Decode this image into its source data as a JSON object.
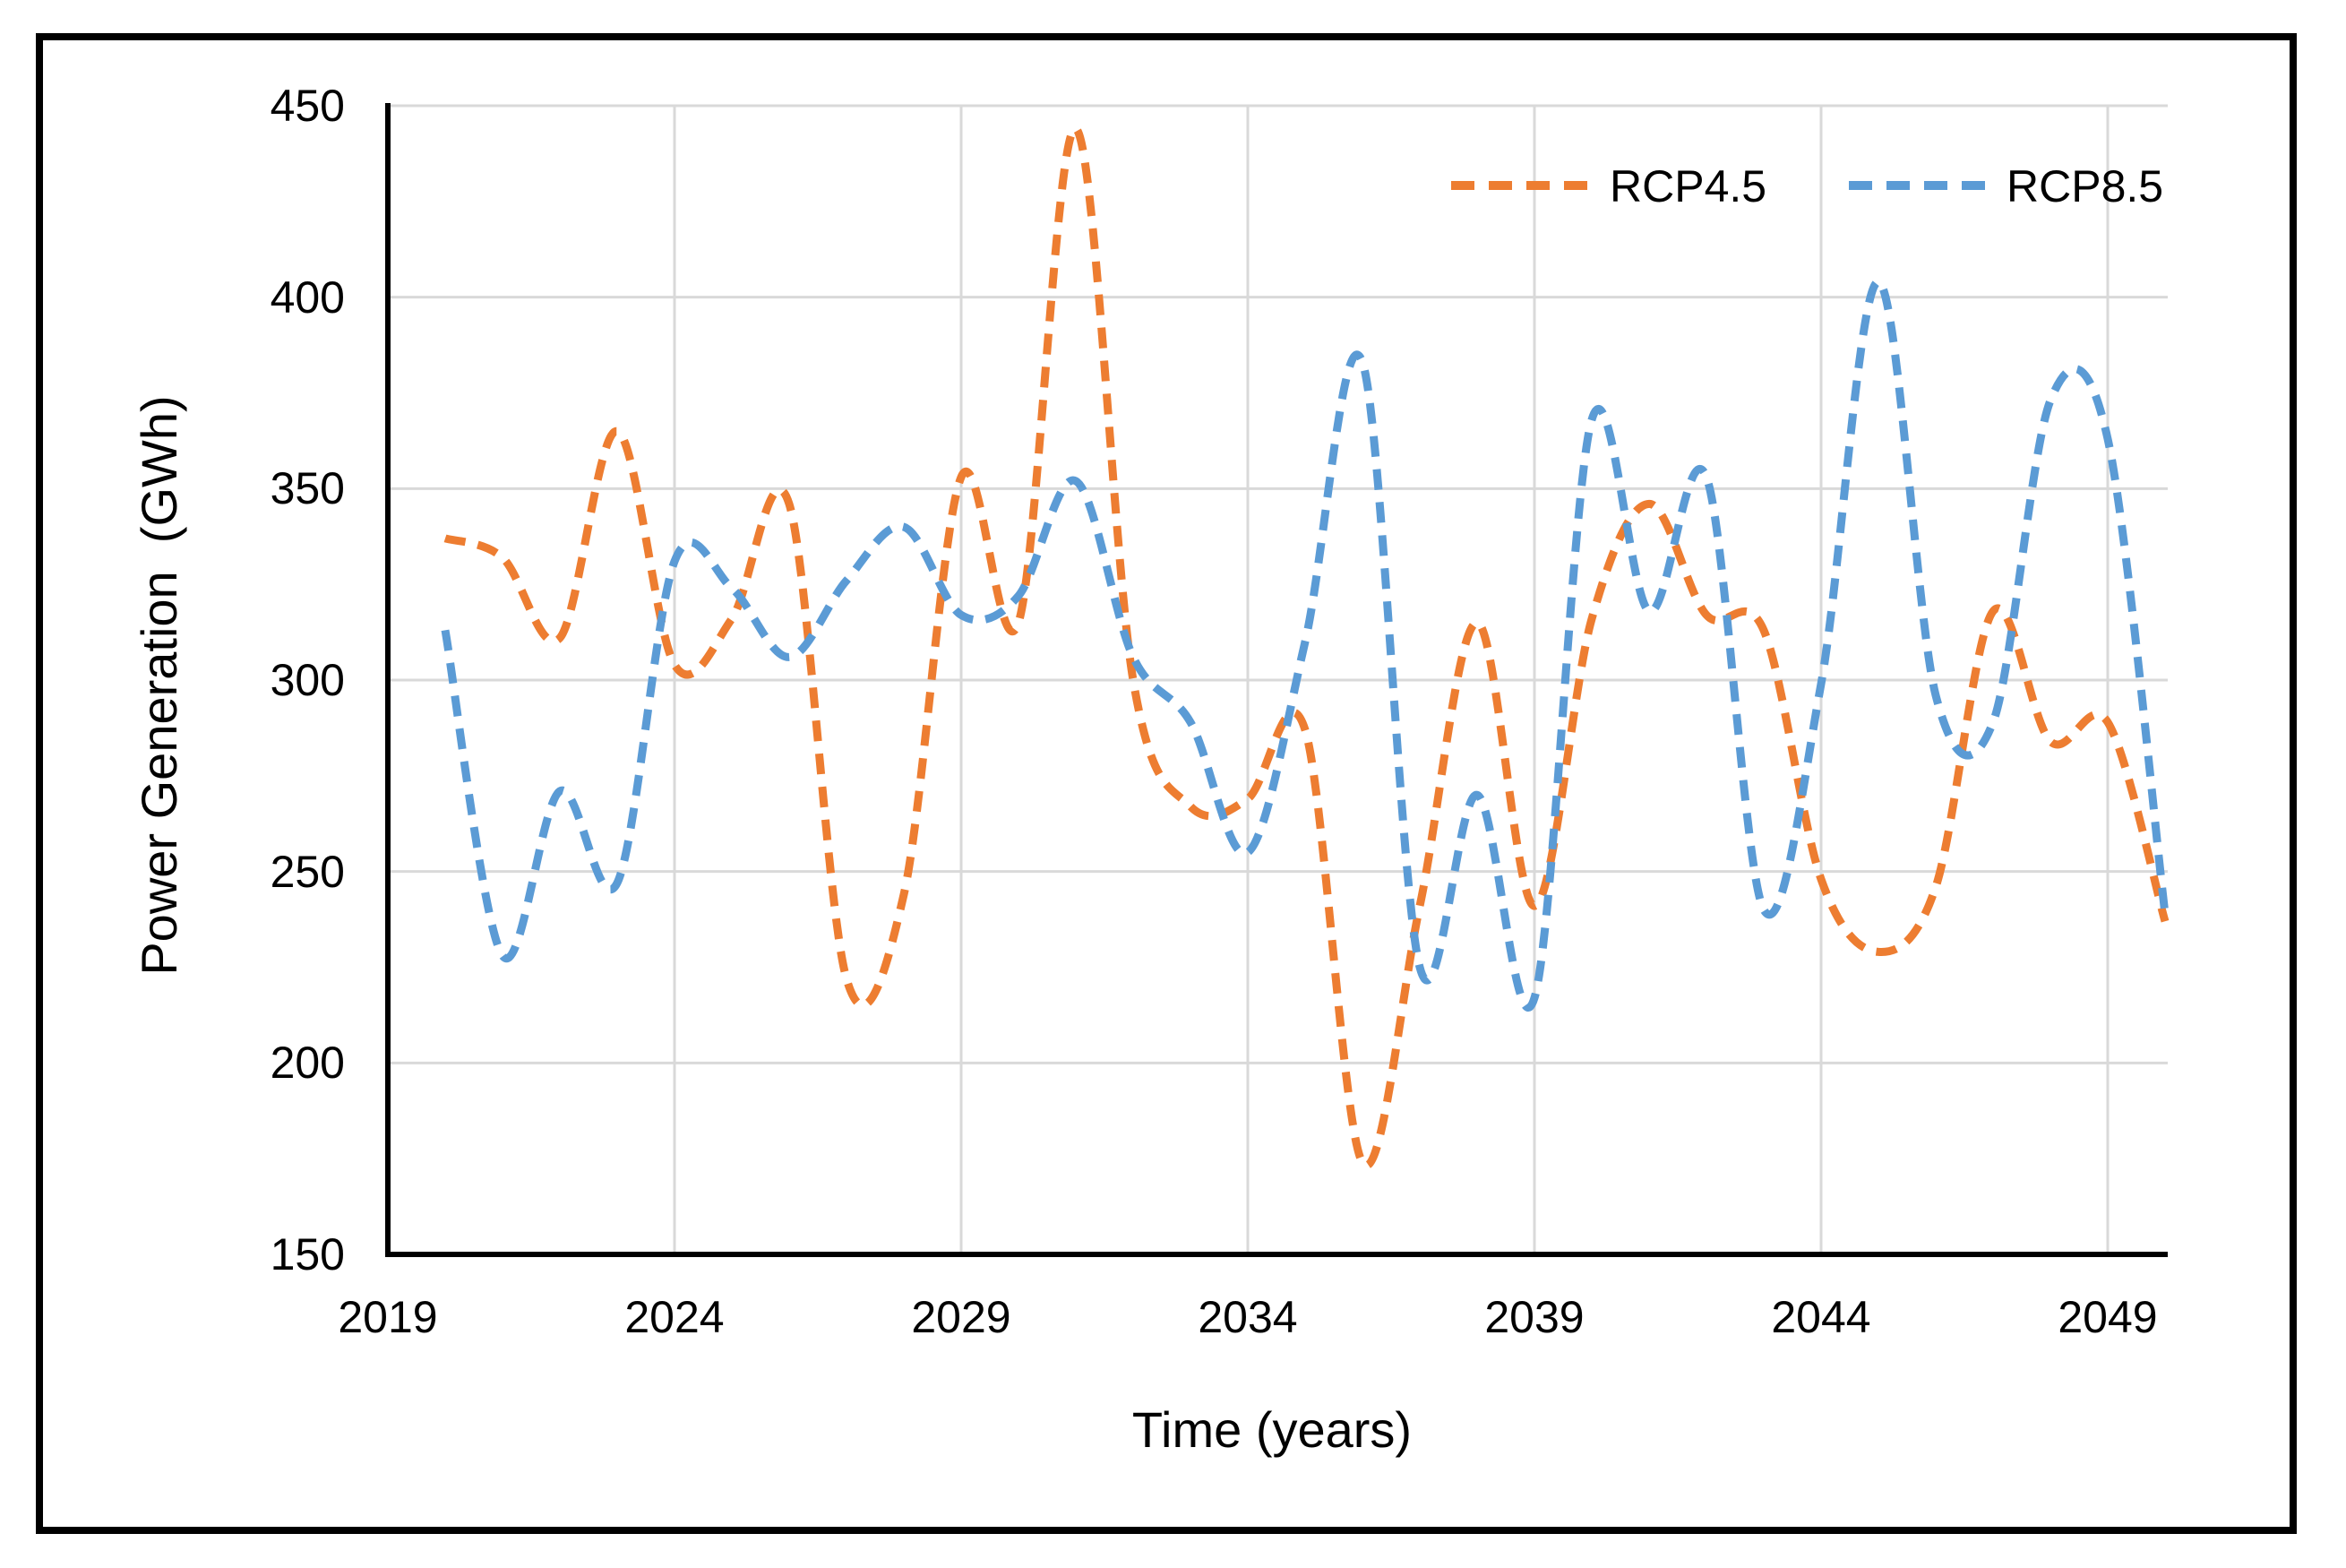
{
  "figure": {
    "background_color": "#ffffff",
    "border_color": "#000000",
    "gridline_color": "#D9D9D9",
    "axis_line_color": "#000000",
    "text_color": "#000000"
  },
  "chart_data": {
    "type": "line",
    "title": "",
    "xlabel": "Time (years)",
    "ylabel": "Power Generation  (GWh)",
    "line_style": "dashed",
    "grid": true,
    "legend_position": "top-right-inside",
    "xlim": [
      2019,
      2050.5
    ],
    "ylim": [
      150,
      450
    ],
    "x_tick_labels": [
      "2019",
      "2024",
      "2029",
      "2034",
      "2039",
      "2044",
      "2049"
    ],
    "x_tick_values": [
      2019,
      2024,
      2029,
      2034,
      2039,
      2044,
      2049
    ],
    "y_tick_labels": [
      "450",
      "400",
      "350",
      "300",
      "250",
      "200",
      "150"
    ],
    "y_tick_values": [
      450,
      400,
      350,
      300,
      250,
      200,
      150
    ],
    "x": [
      2020,
      2021,
      2022,
      2023,
      2024,
      2025,
      2026,
      2027,
      2028,
      2029,
      2030,
      2031,
      2032,
      2033,
      2034,
      2035,
      2036,
      2037,
      2038,
      2039,
      2040,
      2041,
      2042,
      2043,
      2044,
      2045,
      2046,
      2047,
      2048,
      2049,
      2050
    ],
    "series": [
      {
        "name": "RCP4.5",
        "color": "#ED7D31",
        "values": [
          337,
          332,
          311,
          365,
          304,
          316,
          346,
          222,
          244,
          353,
          315,
          444,
          300,
          267,
          269,
          287,
          174,
          241,
          315,
          241,
          316,
          346,
          317,
          313,
          248,
          229,
          246,
          318,
          284,
          289,
          237
        ]
      },
      {
        "name": "RCP8.5",
        "color": "#5B9BD5",
        "values": [
          313,
          228,
          271,
          247,
          331,
          324,
          306,
          326,
          340,
          317,
          322,
          352,
          306,
          289,
          255,
          310,
          383,
          225,
          270,
          217,
          368,
          318,
          353,
          240,
          299,
          404,
          296,
          289,
          373,
          363,
          239
        ]
      }
    ]
  }
}
